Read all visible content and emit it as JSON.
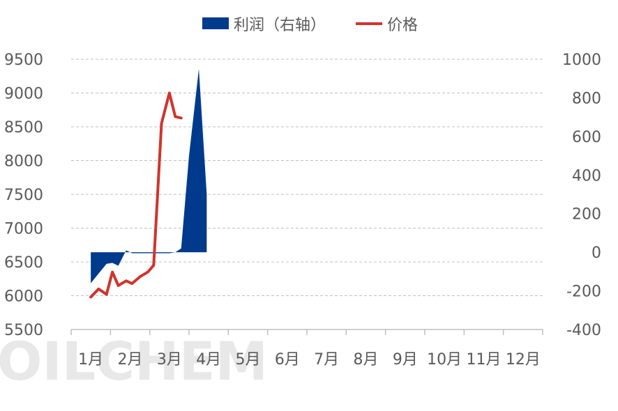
{
  "chart_data": {
    "type": "line",
    "watermark": "OILCHEM",
    "categories": [
      "1月",
      "2月",
      "3月",
      "4月",
      "5月",
      "6月",
      "7月",
      "8月",
      "9月",
      "10月",
      "11月",
      "12月"
    ],
    "legend": [
      {
        "name": "利润（右轴）",
        "type": "area",
        "color": "#003a8c"
      },
      {
        "name": "价格",
        "type": "line",
        "color": "#d0342c"
      }
    ],
    "y_left": {
      "min": 5500,
      "max": 9500,
      "ticks": [
        5500,
        6000,
        6500,
        7000,
        7500,
        8000,
        8500,
        9000,
        9500
      ]
    },
    "y_right": {
      "min": -400,
      "max": 1000,
      "ticks": [
        -400,
        -200,
        0,
        200,
        400,
        600,
        800,
        1000
      ]
    },
    "grid": true,
    "series": [
      {
        "name": "利润（右轴）",
        "axis": "right",
        "type": "area",
        "color": "#003a8c",
        "x": [
          1.0,
          1.2,
          1.4,
          1.55,
          1.7,
          1.9,
          2.05,
          2.25,
          2.45,
          2.6,
          2.8,
          3.0,
          3.15,
          3.3,
          3.5,
          3.75,
          3.95
        ],
        "values": [
          -160,
          -110,
          -60,
          -55,
          -70,
          10,
          -5,
          -5,
          -5,
          -5,
          -5,
          -5,
          0,
          20,
          500,
          950,
          300
        ]
      },
      {
        "name": "价格",
        "axis": "left",
        "type": "line",
        "color": "#d0342c",
        "x": [
          1.0,
          1.2,
          1.4,
          1.55,
          1.7,
          1.9,
          2.05,
          2.25,
          2.45,
          2.6,
          2.8,
          3.0,
          3.15,
          3.3,
          3.5,
          3.75,
          3.95
        ],
        "values": [
          5980,
          6100,
          6020,
          6350,
          6150,
          6220,
          6180,
          6280,
          6350,
          6450,
          8550,
          9000,
          8650,
          8630,
          null,
          null,
          null
        ]
      }
    ]
  }
}
